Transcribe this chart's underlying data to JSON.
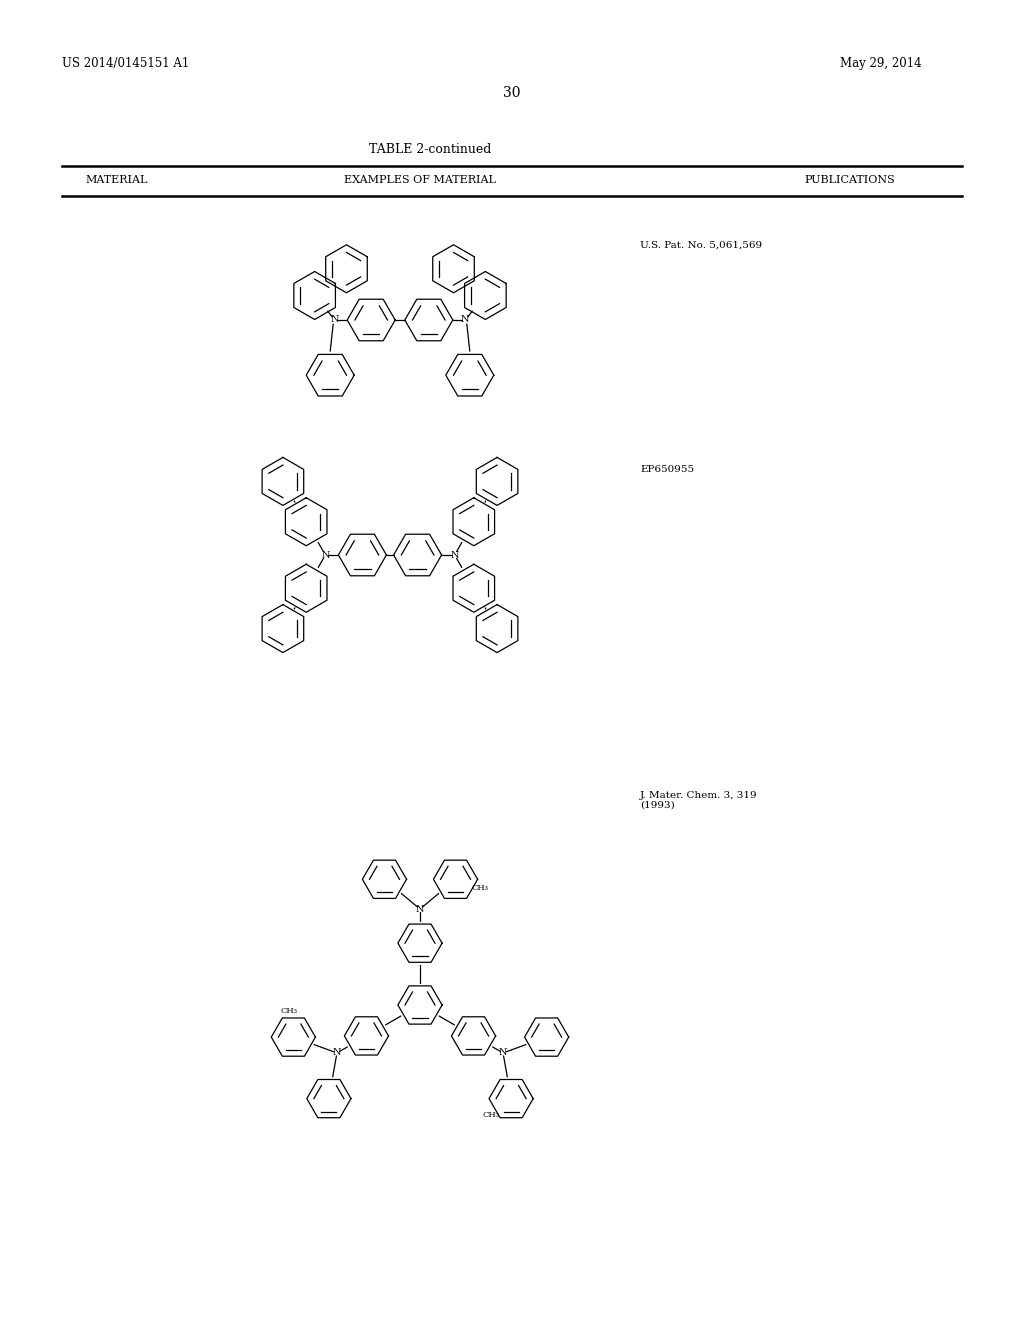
{
  "bg_color": "#ffffff",
  "header_left": "US 2014/0145151 A1",
  "header_right": "May 29, 2014",
  "page_number": "30",
  "table_title": "TABLE 2-continued",
  "col1": "MATERIAL",
  "col2": "EXAMPLES OF MATERIAL",
  "col3": "PUBLICATIONS",
  "pub1": "U.S. Pat. No. 5,061,569",
  "pub2": "EP650955",
  "pub3": "J. Mater. Chem. 3, 319\n(1993)"
}
